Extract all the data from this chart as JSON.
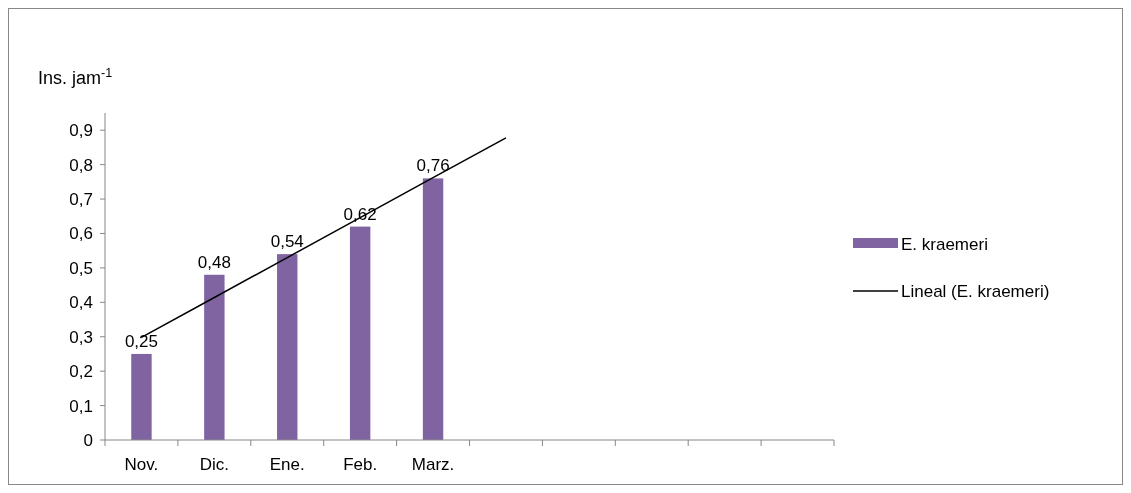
{
  "chart_data": {
    "type": "bar",
    "ylabel": "Ins. jam$^{-1}$",
    "categories": [
      "Nov.",
      "Dic.",
      "Ene.",
      "Feb.",
      "Marz.",
      null,
      null,
      null,
      null,
      null
    ],
    "series": [
      {
        "name": "E. kraemeri",
        "color": "#8064a2",
        "values": [
          0.25,
          0.48,
          0.54,
          0.62,
          0.76,
          null,
          null,
          null,
          null,
          null
        ],
        "value_labels": [
          "0,25",
          "0,48",
          "0,54",
          "0,62",
          "0,76",
          null,
          null,
          null,
          null,
          null
        ]
      },
      {
        "name": "Lineal (E. kraemeri)",
        "type": "line",
        "color": "#000000",
        "values": [
          0.298,
          0.414,
          0.53,
          0.646,
          0.762,
          0.878,
          null,
          null,
          null,
          null
        ]
      }
    ],
    "ylim": [
      0,
      0.95
    ],
    "yticks": [
      0,
      {
        "value": 0.1,
        "label": "0,1"
      },
      {
        "value": 0.2,
        "label": "0,2"
      },
      {
        "value": 0.3,
        "label": "0,3"
      },
      {
        "value": 0.4,
        "label": "0,4"
      },
      {
        "value": 0.5,
        "label": "0,5"
      },
      {
        "value": 0.6,
        "label": "0,6"
      },
      {
        "value": 0.7,
        "label": "0,7"
      },
      {
        "value": 0.8,
        "label": "0,8"
      },
      {
        "value": 0.9,
        "label": "0,9"
      }
    ],
    "grid": false,
    "legend": "right",
    "marker": "none",
    "line_style": "solid"
  }
}
